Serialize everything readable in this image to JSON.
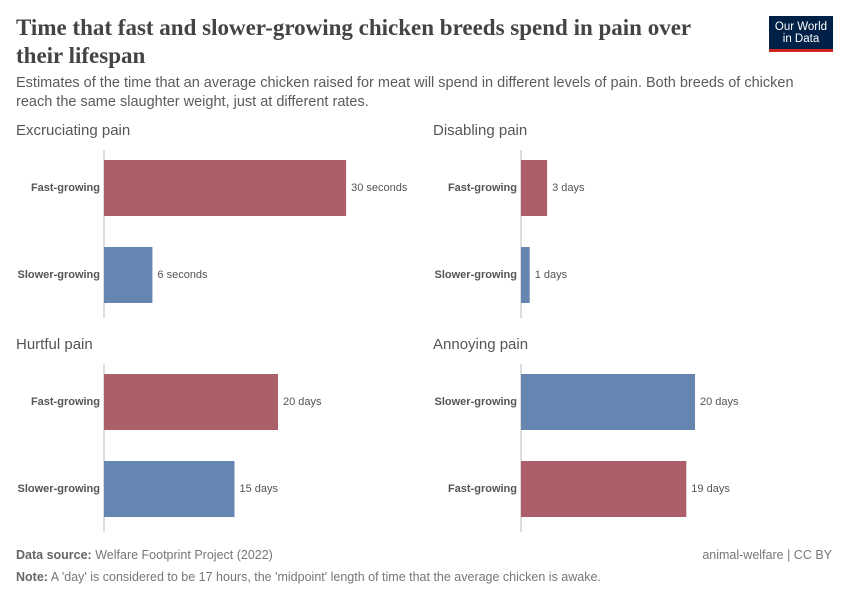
{
  "title": "Time that fast and slower-growing chicken breeds spend in pain over their lifespan",
  "subtitle": "Estimates of the time that an average chicken raised for meat will spend in different levels of pain. Both breeds of chicken reach the same slaughter weight, just at different rates.",
  "logo": [
    "Our World",
    "in Data"
  ],
  "source_label": "Data source:",
  "source": "Welfare Footprint Project (2022)",
  "note_label": "Note:",
  "note": "A 'day' is considered to be 17 hours, the 'midpoint' length of time that the average chicken is awake.",
  "license": "animal-welfare | CC BY",
  "chart_data": [
    {
      "type": "bar",
      "orientation": "horizontal",
      "title": "Excruciating pain",
      "categories": [
        "Fast-growing",
        "Slower-growing"
      ],
      "values": [
        30,
        6
      ],
      "value_labels": [
        "30 seconds",
        "6 seconds"
      ],
      "colors": [
        "#ac5f68",
        "#6686b2"
      ]
    },
    {
      "type": "bar",
      "orientation": "horizontal",
      "title": "Disabling pain",
      "categories": [
        "Fast-growing",
        "Slower-growing"
      ],
      "values": [
        3,
        1
      ],
      "value_labels": [
        "3 days",
        "1 days"
      ],
      "colors": [
        "#ac5f68",
        "#6686b2"
      ]
    },
    {
      "type": "bar",
      "orientation": "horizontal",
      "title": "Hurtful pain",
      "categories": [
        "Fast-growing",
        "Slower-growing"
      ],
      "values": [
        20,
        15
      ],
      "value_labels": [
        "20 days",
        "15 days"
      ],
      "colors": [
        "#ac5f68",
        "#6686b2"
      ]
    },
    {
      "type": "bar",
      "orientation": "horizontal",
      "title": "Annoying pain",
      "categories": [
        "Slower-growing",
        "Fast-growing"
      ],
      "values": [
        20,
        19
      ],
      "value_labels": [
        "20 days",
        "19 days"
      ],
      "colors": [
        "#6686b2",
        "#ac5f68"
      ]
    }
  ]
}
